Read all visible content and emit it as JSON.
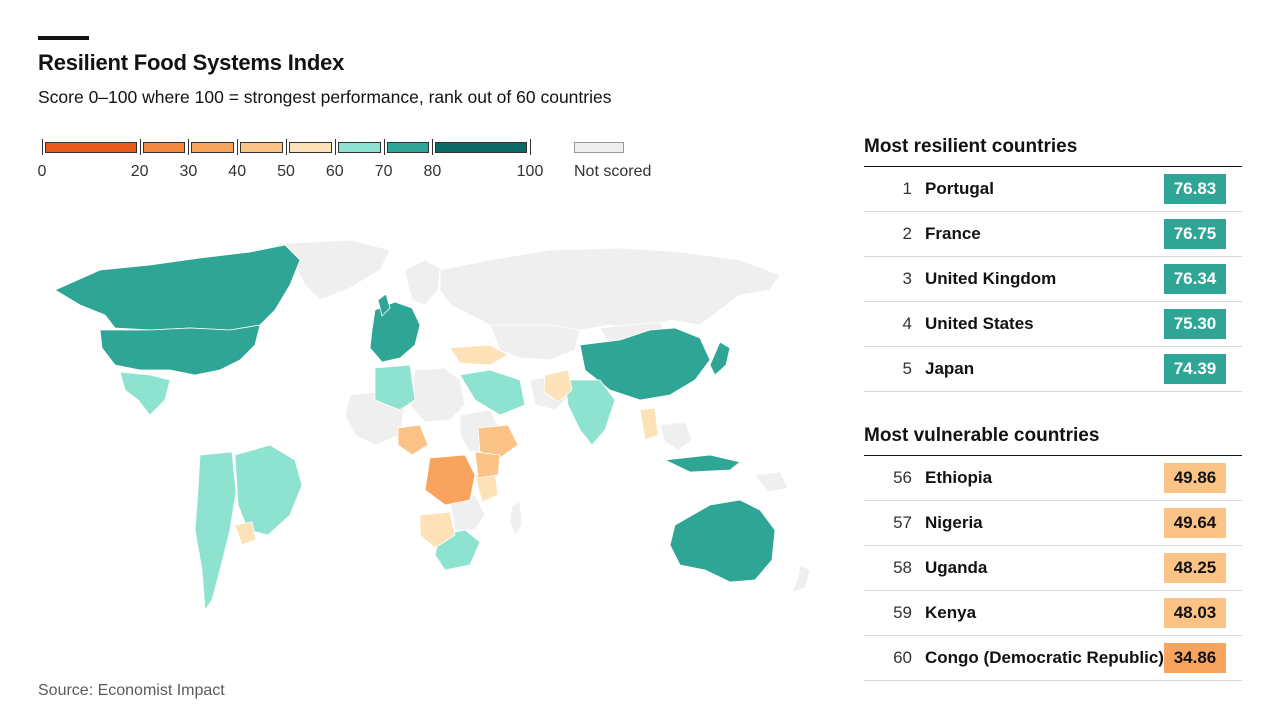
{
  "header": {
    "title": "Resilient Food Systems Index",
    "subtitle": "Score 0–100 where 100 = strongest performance, rank out of 60 countries"
  },
  "legend": {
    "bins": [
      {
        "from": 0,
        "to": 20,
        "color": "#ec5b1e"
      },
      {
        "from": 20,
        "to": 30,
        "color": "#f3873f"
      },
      {
        "from": 30,
        "to": 40,
        "color": "#f8a35e"
      },
      {
        "from": 40,
        "to": 50,
        "color": "#fbc486"
      },
      {
        "from": 50,
        "to": 60,
        "color": "#fde2b7"
      },
      {
        "from": 60,
        "to": 70,
        "color": "#8de3cf"
      },
      {
        "from": 70,
        "to": 80,
        "color": "#2fa596"
      },
      {
        "from": 80,
        "to": 100,
        "color": "#0b6b66"
      }
    ],
    "tick_labels": [
      "0",
      "20",
      "30",
      "40",
      "50",
      "60",
      "70",
      "80",
      "100"
    ],
    "not_scored_label": "Not scored",
    "not_scored_color": "#efefef"
  },
  "most_resilient": {
    "title": "Most resilient countries",
    "rows": [
      {
        "rank": "1",
        "country": "Portugal",
        "score": "76.83",
        "color": "#2fa596",
        "text_color": "#ffffff"
      },
      {
        "rank": "2",
        "country": "France",
        "score": "76.75",
        "color": "#2fa596",
        "text_color": "#ffffff"
      },
      {
        "rank": "3",
        "country": "United Kingdom",
        "score": "76.34",
        "color": "#2fa596",
        "text_color": "#ffffff"
      },
      {
        "rank": "4",
        "country": "United States",
        "score": "75.30",
        "color": "#2fa596",
        "text_color": "#ffffff"
      },
      {
        "rank": "5",
        "country": "Japan",
        "score": "74.39",
        "color": "#2fa596",
        "text_color": "#ffffff"
      }
    ]
  },
  "most_vulnerable": {
    "title": "Most vulnerable countries",
    "rows": [
      {
        "rank": "56",
        "country": "Ethiopia",
        "score": "49.86",
        "color": "#fbc486",
        "text_color": "#121212"
      },
      {
        "rank": "57",
        "country": "Nigeria",
        "score": "49.64",
        "color": "#fbc486",
        "text_color": "#121212"
      },
      {
        "rank": "58",
        "country": "Uganda",
        "score": "48.25",
        "color": "#fbc486",
        "text_color": "#121212"
      },
      {
        "rank": "59",
        "country": "Kenya",
        "score": "48.03",
        "color": "#fbc486",
        "text_color": "#121212"
      },
      {
        "rank": "60",
        "country": "Congo (Democratic Republic)",
        "score": "34.86",
        "color": "#f8a35e",
        "text_color": "#121212"
      }
    ]
  },
  "footer": {
    "source": "Source: Economist Impact"
  }
}
